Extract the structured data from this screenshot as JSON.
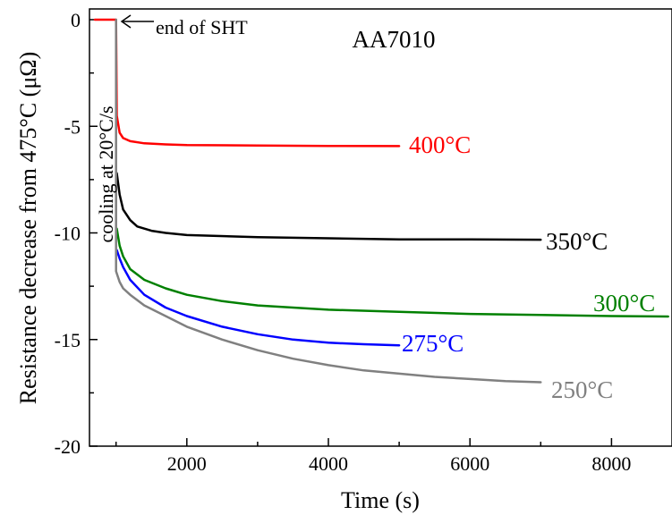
{
  "chart_data": {
    "type": "line",
    "title": "AA7010",
    "xlabel": "Time (s)",
    "ylabel": "Resistance decrease from 475°C (μΩ)",
    "xlim": [
      700,
      8800
    ],
    "ylim": [
      -20,
      0.5
    ],
    "xticks": [
      2000,
      4000,
      6000,
      8000
    ],
    "xtick_labels": [
      "2000",
      "4000",
      "6000",
      "8000"
    ],
    "yticks": [
      0,
      -5,
      -10,
      -15,
      -20
    ],
    "ytick_labels": [
      "0",
      "-5",
      "-10",
      "-15",
      "-20"
    ],
    "grid": false,
    "legend": "none",
    "annotations": {
      "end_of_sht": "end of SHT",
      "cooling": "cooling at 20°C/s"
    },
    "series": [
      {
        "name": "400°C",
        "color": "#ff0000",
        "points": [
          [
            700,
            0
          ],
          [
            1000,
            0
          ],
          [
            1010,
            -4.5
          ],
          [
            1050,
            -5.3
          ],
          [
            1100,
            -5.55
          ],
          [
            1200,
            -5.7
          ],
          [
            1400,
            -5.8
          ],
          [
            1700,
            -5.85
          ],
          [
            2000,
            -5.88
          ],
          [
            3000,
            -5.9
          ],
          [
            4000,
            -5.92
          ],
          [
            5000,
            -5.93
          ]
        ]
      },
      {
        "name": "350°C",
        "color": "#000000",
        "points": [
          [
            1010,
            -7.2
          ],
          [
            1050,
            -8.2
          ],
          [
            1100,
            -8.9
          ],
          [
            1200,
            -9.4
          ],
          [
            1300,
            -9.7
          ],
          [
            1500,
            -9.9
          ],
          [
            1700,
            -10.0
          ],
          [
            2000,
            -10.1
          ],
          [
            3000,
            -10.2
          ],
          [
            4000,
            -10.25
          ],
          [
            5000,
            -10.3
          ],
          [
            6000,
            -10.3
          ],
          [
            7000,
            -10.32
          ]
        ]
      },
      {
        "name": "300°C",
        "color": "#008000",
        "points": [
          [
            1010,
            -9.8
          ],
          [
            1050,
            -10.6
          ],
          [
            1100,
            -11.1
          ],
          [
            1200,
            -11.7
          ],
          [
            1400,
            -12.2
          ],
          [
            1700,
            -12.6
          ],
          [
            2000,
            -12.9
          ],
          [
            2500,
            -13.2
          ],
          [
            3000,
            -13.4
          ],
          [
            4000,
            -13.6
          ],
          [
            5000,
            -13.7
          ],
          [
            6000,
            -13.8
          ],
          [
            7000,
            -13.85
          ],
          [
            8000,
            -13.9
          ],
          [
            8800,
            -13.92
          ]
        ]
      },
      {
        "name": "275°C",
        "color": "#0000ff",
        "points": [
          [
            1010,
            -10.8
          ],
          [
            1050,
            -11.2
          ],
          [
            1100,
            -11.6
          ],
          [
            1200,
            -12.2
          ],
          [
            1400,
            -12.9
          ],
          [
            1700,
            -13.5
          ],
          [
            2000,
            -13.9
          ],
          [
            2500,
            -14.4
          ],
          [
            3000,
            -14.75
          ],
          [
            3500,
            -15.0
          ],
          [
            4000,
            -15.15
          ],
          [
            4500,
            -15.22
          ],
          [
            5000,
            -15.27
          ]
        ]
      },
      {
        "name": "250°C",
        "color": "#808080",
        "points": [
          [
            1000,
            0
          ],
          [
            1000,
            -11.8
          ],
          [
            1050,
            -12.3
          ],
          [
            1100,
            -12.6
          ],
          [
            1200,
            -12.9
          ],
          [
            1400,
            -13.4
          ],
          [
            1700,
            -13.9
          ],
          [
            2000,
            -14.4
          ],
          [
            2500,
            -15.0
          ],
          [
            3000,
            -15.5
          ],
          [
            3500,
            -15.9
          ],
          [
            4000,
            -16.2
          ],
          [
            4500,
            -16.45
          ],
          [
            5000,
            -16.6
          ],
          [
            5500,
            -16.75
          ],
          [
            6000,
            -16.85
          ],
          [
            6500,
            -16.95
          ],
          [
            7000,
            -17.0
          ]
        ]
      }
    ]
  }
}
